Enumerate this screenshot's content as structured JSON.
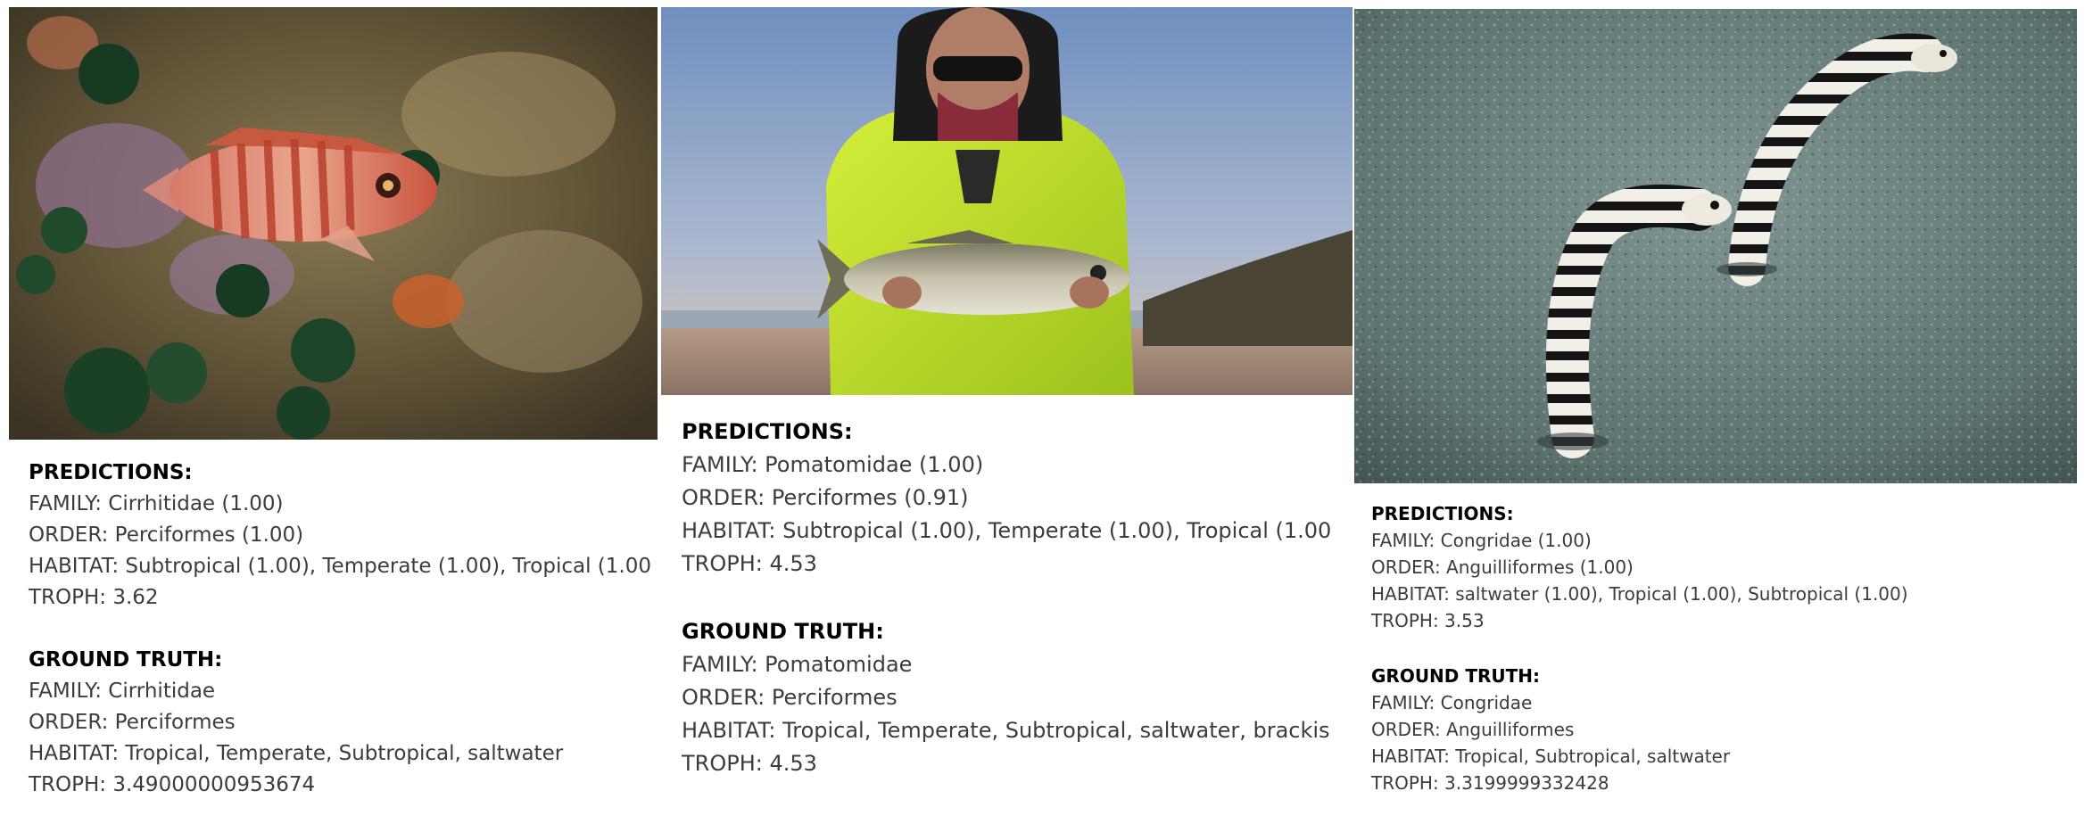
{
  "panels": [
    {
      "image_subject": "hawkfish-on-reef",
      "predictions": {
        "header": "PREDICTIONS:",
        "family": "FAMILY: Cirrhitidae (1.00)",
        "order": "ORDER: Perciformes (1.00)",
        "habitat": "HABITAT: Subtropical (1.00), Temperate (1.00), Tropical (1.00",
        "troph": "TROPH: 3.62"
      },
      "ground_truth": {
        "header": "GROUND TRUTH:",
        "family": "FAMILY: Cirrhitidae",
        "order": "ORDER: Perciformes",
        "habitat": "HABITAT: Tropical, Temperate, Subtropical, saltwater",
        "troph": "TROPH: 3.49000000953674"
      }
    },
    {
      "image_subject": "angler-holding-bluefish-on-beach",
      "predictions": {
        "header": "PREDICTIONS:",
        "family": "FAMILY: Pomatomidae (1.00)",
        "order": "ORDER: Perciformes (0.91)",
        "habitat": "HABITAT: Subtropical (1.00), Temperate (1.00), Tropical (1.00",
        "troph": "TROPH: 4.53"
      },
      "ground_truth": {
        "header": "GROUND TRUTH:",
        "family": "FAMILY: Pomatomidae",
        "order": "ORDER: Perciformes",
        "habitat": "HABITAT: Tropical, Temperate, Subtropical, saltwater, brackis",
        "troph": "TROPH: 4.53"
      }
    },
    {
      "image_subject": "garden-eels-in-sand",
      "predictions": {
        "header": "PREDICTIONS:",
        "family": "FAMILY: Congridae (1.00)",
        "order": "ORDER: Anguilliformes (1.00)",
        "habitat": "HABITAT: saltwater (1.00), Tropical (1.00), Subtropical (1.00)",
        "troph": "TROPH: 3.53"
      },
      "ground_truth": {
        "header": "GROUND TRUTH:",
        "family": "FAMILY: Congridae",
        "order": "ORDER: Anguilliformes",
        "habitat": "HABITAT: Tropical, Subtropical, saltwater",
        "troph": "TROPH: 3.3199999332428"
      }
    }
  ],
  "colors": {
    "header_text": "#000000",
    "body_text": "#3c3c3c",
    "background": "#ffffff"
  }
}
